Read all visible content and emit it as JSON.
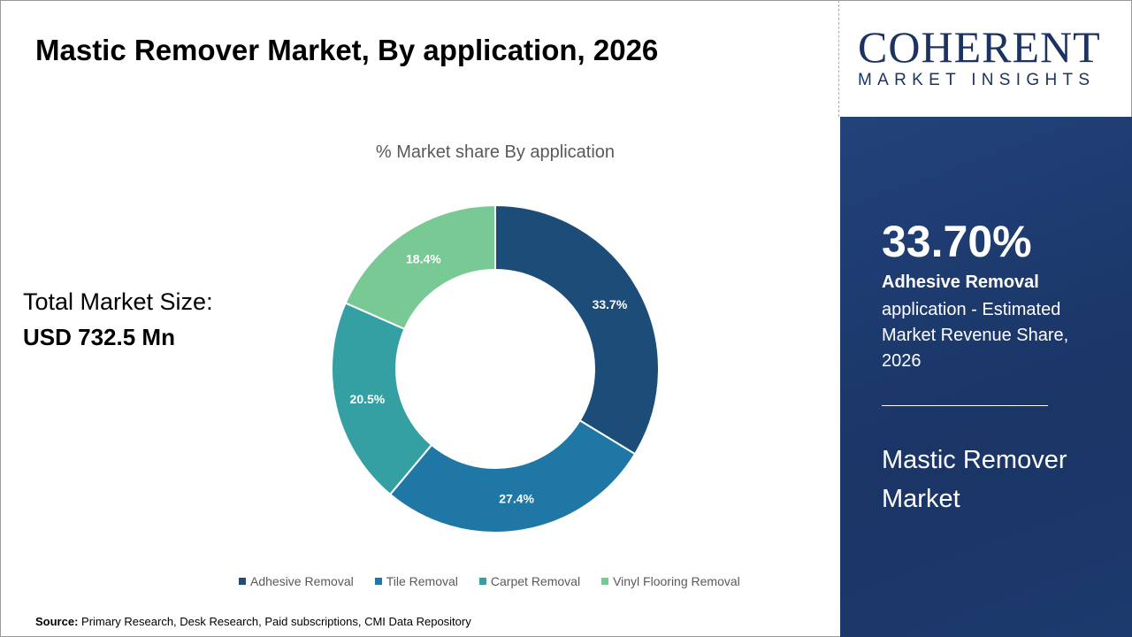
{
  "title": "Mastic Remover Market, By application, 2026",
  "total_market": {
    "label": "Total Market Size:",
    "value": "USD 732.5 Mn"
  },
  "source": {
    "label": "Source:",
    "text": " Primary Research, Desk Research, Paid subscriptions, CMI Data Repository"
  },
  "logo": {
    "big": "COHERENT",
    "small": "MARKET INSIGHTS"
  },
  "panel": {
    "percent": "33.70%",
    "segment": "Adhesive Removal",
    "description": "application - Estimated Market Revenue Share, 2026",
    "market": "Mastic Remover Market"
  },
  "chart_data": {
    "type": "pie",
    "donut": true,
    "title": "% Market share By application",
    "categories": [
      "Adhesive Removal",
      "Tile Removal",
      "Carpet Removal",
      "Vinyl Flooring Removal"
    ],
    "values": [
      33.7,
      27.4,
      20.5,
      18.4
    ],
    "labels": [
      "33.7%",
      "27.4%",
      "20.5%",
      "18.4%"
    ],
    "colors": [
      "#1b4d78",
      "#1f77a6",
      "#34a0a4",
      "#79c994"
    ],
    "legend": "bottom"
  }
}
